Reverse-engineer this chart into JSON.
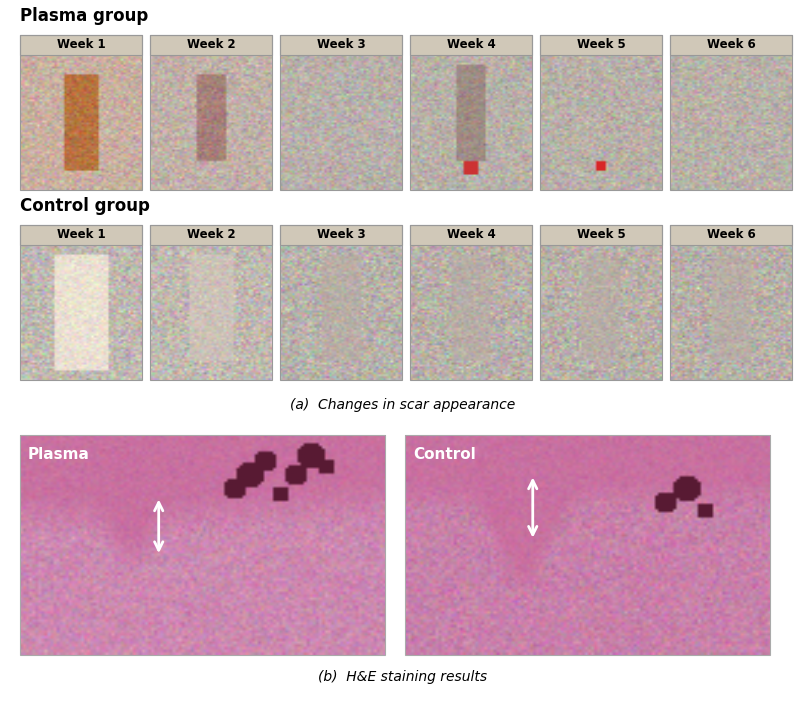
{
  "background_color": "#ffffff",
  "fig_width": 8.05,
  "fig_height": 7.19,
  "dpi": 100,
  "plasma_group_label": "Plasma group",
  "control_group_label": "Control group",
  "week_labels": [
    "Week 1",
    "Week 2",
    "Week 3",
    "Week 4",
    "Week 5",
    "Week 6"
  ],
  "caption_a": "(a)  Changes in scar appearance",
  "caption_b": "(b)  H&E staining results",
  "plasma_label": "Plasma",
  "control_label": "Control",
  "plasma_img_colors": [
    "#c8b0a0",
    "#c0b0a8",
    "#b8b0aa",
    "#b8b0a8",
    "#b8b0a8",
    "#b8b0a8"
  ],
  "control_img_colors": [
    "#c0b8b0",
    "#c0b8b0",
    "#b8b2aa",
    "#b8b0a8",
    "#b8b0a8",
    "#b8b0a8"
  ],
  "label_bar_color": "#d0c8b8",
  "img_border_color": "#999999",
  "he_plasma_bg": "#cc88b0",
  "he_control_bg": "#c880aa",
  "he_tissue_color": "#c870a0",
  "he_tissue_dark": "#b05880",
  "he_circle_color": "#602050"
}
